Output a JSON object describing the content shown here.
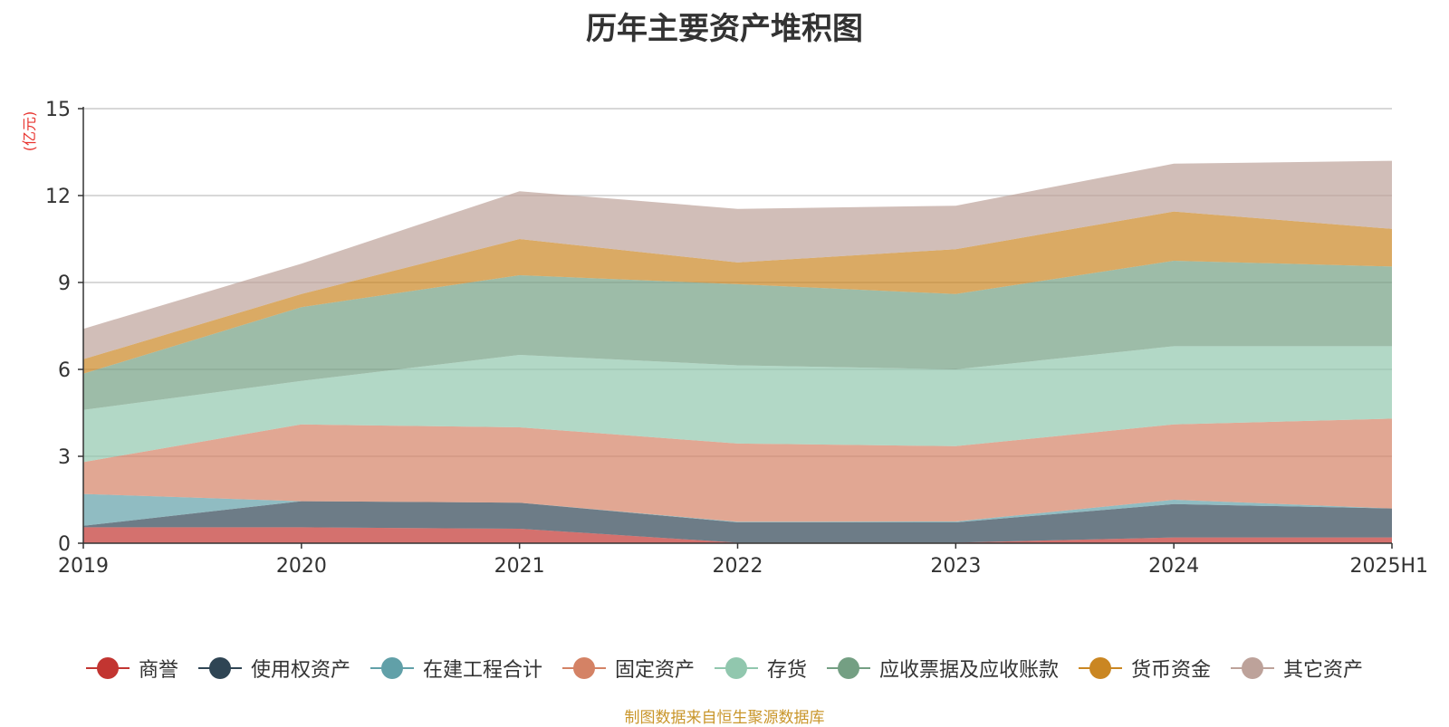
{
  "chart_data": {
    "type": "area",
    "title": "历年主要资产堆积图",
    "ylabel": "(亿元)",
    "xlabel": "",
    "categories": [
      "2019",
      "2020",
      "2021",
      "2022",
      "2023",
      "2024",
      "2025H1"
    ],
    "ylim": [
      0,
      15
    ],
    "yticks": [
      0,
      3,
      6,
      9,
      12,
      15
    ],
    "stacked": true,
    "grid": true,
    "legend_position": "bottom",
    "series": [
      {
        "name": "商誉",
        "color": "#c23531",
        "values": [
          0.55,
          0.55,
          0.5,
          0.02,
          0.02,
          0.2,
          0.2
        ]
      },
      {
        "name": "使用权资产",
        "color": "#2f4554",
        "values": [
          0.05,
          0.9,
          0.9,
          0.7,
          0.7,
          1.15,
          1.0
        ]
      },
      {
        "name": "在建工程合计",
        "color": "#61a0a8",
        "values": [
          1.1,
          0.0,
          0.0,
          0.02,
          0.03,
          0.15,
          0.0
        ]
      },
      {
        "name": "固定资产",
        "color": "#d48265",
        "values": [
          1.1,
          2.65,
          2.6,
          2.7,
          2.6,
          2.6,
          3.1
        ]
      },
      {
        "name": "存货",
        "color": "#91c7ae",
        "values": [
          1.8,
          1.5,
          2.5,
          2.7,
          2.65,
          2.7,
          2.5
        ]
      },
      {
        "name": "应收票据及应收账款",
        "color": "#749f83",
        "values": [
          1.25,
          2.55,
          2.75,
          2.8,
          2.6,
          2.95,
          2.75
        ]
      },
      {
        "name": "货币资金",
        "color": "#ca8622",
        "values": [
          0.5,
          0.45,
          1.25,
          0.75,
          1.55,
          1.7,
          1.3
        ]
      },
      {
        "name": "其它资产",
        "color": "#bda29a",
        "values": [
          1.05,
          1.05,
          1.65,
          1.85,
          1.5,
          1.65,
          2.35
        ]
      }
    ]
  },
  "source_note": "制图数据来自恒生聚源数据库"
}
